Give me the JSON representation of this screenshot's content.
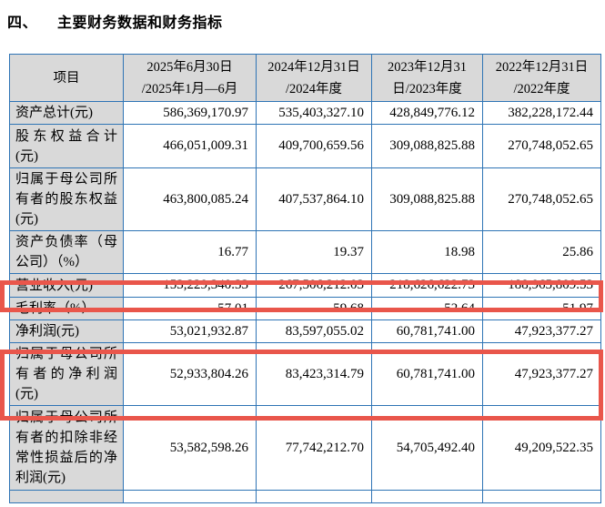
{
  "page": {
    "section_number": "四、",
    "section_title": "主要财务数据和财务指标"
  },
  "table": {
    "header": [
      "项目",
      "2025年6月30日\n/2025年1月—6月",
      "2024年12月31日\n/2024年度",
      "2023年12月31\n日/2023年度",
      "2022年12月31日\n/2022年度"
    ],
    "rows": [
      {
        "label": "资产总计(元)",
        "values": [
          "586,369,170.97",
          "535,403,327.10",
          "428,849,776.12",
          "382,228,172.44"
        ],
        "highlighted": false
      },
      {
        "label": "股东权益合计(元)",
        "values": [
          "466,051,009.31",
          "409,700,659.56",
          "309,088,825.88",
          "270,748,052.65"
        ],
        "highlighted": false
      },
      {
        "label": "归属于母公司所有者的股东权益(元)",
        "values": [
          "463,800,085.24",
          "407,537,864.10",
          "309,088,825.88",
          "270,748,052.65"
        ],
        "highlighted": false
      },
      {
        "label": "资产负债率（母公司）（%）",
        "values": [
          "16.77",
          "19.37",
          "18.98",
          "25.86"
        ],
        "highlighted": false
      },
      {
        "label": "营业收入(元)",
        "values": [
          "153,229,340.33",
          "267,506,212.03",
          "218,626,622.73",
          "188,965,809.53"
        ],
        "highlighted": true
      },
      {
        "label": "毛利率（%）",
        "values": [
          "57.01",
          "59.68",
          "52.64",
          "51.97"
        ],
        "highlighted": false
      },
      {
        "label": "净利润(元)",
        "values": [
          "53,021,932.87",
          "83,597,055.02",
          "60,781,741.00",
          "47,923,377.27"
        ],
        "highlighted": false
      },
      {
        "label": "归属于母公司所有者的净利润(元)",
        "values": [
          "52,933,804.26",
          "83,423,314.79",
          "60,781,741.00",
          "47,923,377.27"
        ],
        "highlighted": true
      },
      {
        "label": "归属于母公司所有者的扣除非经常性损益后的净利润(元)",
        "values": [
          "53,582,598.26",
          "77,742,212.70",
          "54,705,492.40",
          "49,209,522.35"
        ],
        "highlighted": false
      }
    ]
  },
  "colors": {
    "table_border": "#2e74b5",
    "shaded_cell_bg": "#d9d9d9",
    "highlight_box": "#e9564b"
  }
}
